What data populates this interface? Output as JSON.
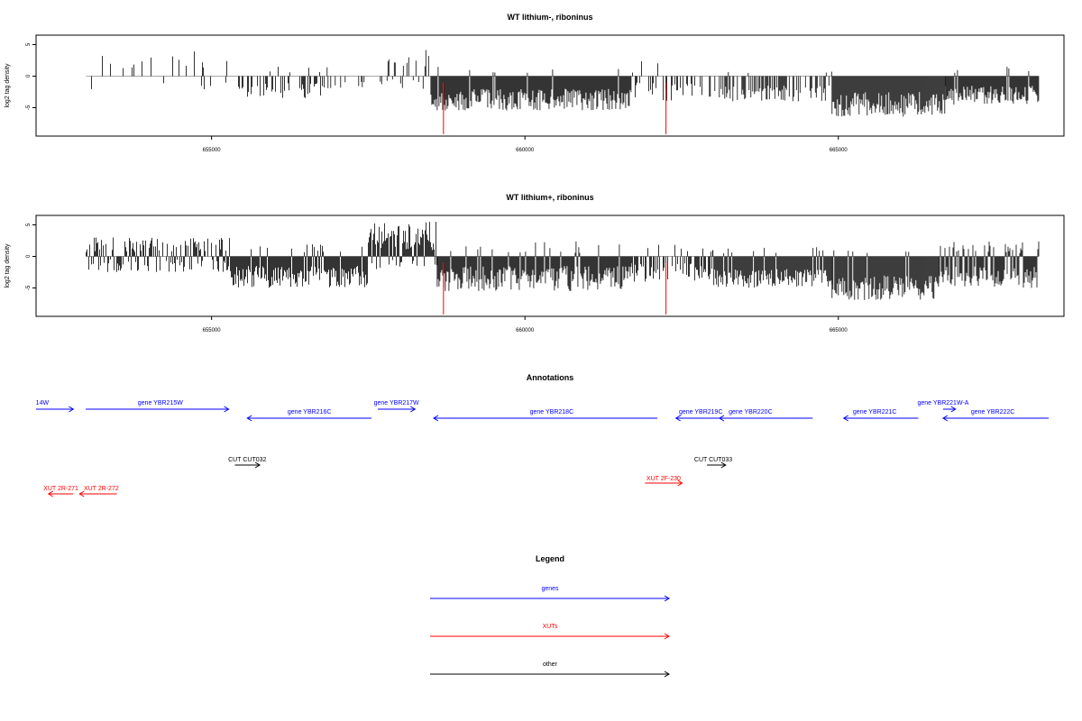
{
  "colors": {
    "gene": "#0000ff",
    "xut": "#ff0000",
    "other": "#000000",
    "marker": "#ff0000",
    "bars": "#000000",
    "baseline": "#a6a6a6"
  },
  "chart_data": [
    {
      "type": "bar",
      "title": "WT lithium-, riboninus",
      "ylabel": "log2 tag density",
      "xlim": [
        652200,
        668600
      ],
      "ylim": [
        -9.5,
        6.5
      ],
      "xticks": [
        655000,
        660000,
        665000
      ],
      "yticks": [
        5,
        0,
        -5
      ],
      "markers_x": [
        658700,
        662250
      ],
      "regions": [
        {
          "from": 653000,
          "to": 655400,
          "dens": 0.18,
          "pos": [
            1,
            4
          ],
          "neg": [
            1,
            2.5
          ],
          "pp": 0.65
        },
        {
          "from": 655400,
          "to": 656800,
          "dens": 0.5,
          "pos": [
            0.5,
            1.5
          ],
          "neg": [
            1,
            3.5
          ],
          "pp": 0.05
        },
        {
          "from": 656800,
          "to": 657700,
          "dens": 0.15,
          "pos": [
            0.5,
            1.5
          ],
          "neg": [
            0.5,
            2
          ],
          "pp": 0.1
        },
        {
          "from": 657700,
          "to": 658500,
          "dens": 0.32,
          "pos": [
            1,
            4.5
          ],
          "neg": [
            0.5,
            2
          ],
          "pp": 0.7
        },
        {
          "from": 658500,
          "to": 661700,
          "dens": 1.3,
          "pos": [
            0.5,
            1.5
          ],
          "neg": [
            2,
            5.5
          ],
          "pp": 0.02
        },
        {
          "from": 661700,
          "to": 662900,
          "dens": 0.35,
          "pos": [
            0.5,
            2.5
          ],
          "neg": [
            1,
            4
          ],
          "pp": 0.12
        },
        {
          "from": 662900,
          "to": 663900,
          "dens": 0.6,
          "pos": [
            0.5,
            1
          ],
          "neg": [
            1.5,
            4
          ],
          "pp": 0.03
        },
        {
          "from": 663900,
          "to": 664900,
          "dens": 0.6,
          "pos": [
            0.5,
            1
          ],
          "neg": [
            1.5,
            4
          ],
          "pp": 0.03
        },
        {
          "from": 664900,
          "to": 666700,
          "dens": 1.8,
          "pos": [
            0.5,
            1
          ],
          "neg": [
            2.5,
            6.5
          ],
          "pp": 0.01
        },
        {
          "from": 666700,
          "to": 668200,
          "dens": 1.2,
          "pos": [
            0.5,
            1.5
          ],
          "neg": [
            1.5,
            4.5
          ],
          "pp": 0.04
        }
      ]
    },
    {
      "type": "bar",
      "title": "WT lithium+, riboninus",
      "ylabel": "log2 tag density",
      "xlim": [
        652200,
        668600
      ],
      "ylim": [
        -9.5,
        6.5
      ],
      "xticks": [
        655000,
        660000,
        665000
      ],
      "yticks": [
        5,
        0,
        -5
      ],
      "markers_x": [
        658700,
        662250
      ],
      "regions": [
        {
          "from": 653000,
          "to": 655300,
          "dens": 0.8,
          "pos": [
            0.5,
            3
          ],
          "neg": [
            0.5,
            2.5
          ],
          "pp": 0.55
        },
        {
          "from": 655300,
          "to": 657500,
          "dens": 1.4,
          "pos": [
            0.5,
            2
          ],
          "neg": [
            1.5,
            5
          ],
          "pp": 0.12
        },
        {
          "from": 657500,
          "to": 658600,
          "dens": 1.5,
          "pos": [
            1,
            5.5
          ],
          "neg": [
            0.5,
            2
          ],
          "pp": 0.85
        },
        {
          "from": 658600,
          "to": 661700,
          "dens": 1.2,
          "pos": [
            0.5,
            2.5
          ],
          "neg": [
            1.5,
            5.5
          ],
          "pp": 0.1
        },
        {
          "from": 661700,
          "to": 663000,
          "dens": 0.6,
          "pos": [
            0.5,
            2
          ],
          "neg": [
            1,
            4
          ],
          "pp": 0.15
        },
        {
          "from": 663000,
          "to": 664900,
          "dens": 1.6,
          "pos": [
            0.5,
            1.5
          ],
          "neg": [
            2,
            5
          ],
          "pp": 0.05
        },
        {
          "from": 664900,
          "to": 666600,
          "dens": 2.2,
          "pos": [
            0.5,
            1.5
          ],
          "neg": [
            3,
            7
          ],
          "pp": 0.03
        },
        {
          "from": 666600,
          "to": 668200,
          "dens": 1.4,
          "pos": [
            0.5,
            2.5
          ],
          "neg": [
            1.5,
            5
          ],
          "pp": 0.2
        }
      ]
    }
  ],
  "annotations": {
    "title": "Annotations",
    "features": [
      {
        "label": "14W",
        "kind": "gene",
        "dir": "right",
        "x1": 652200,
        "x2": 652800,
        "row": 0,
        "label_x": 652300
      },
      {
        "label": "gene YBR215W",
        "kind": "gene",
        "dir": "right",
        "x1": 653000,
        "x2": 655300,
        "row": 0,
        "label_x": 654200
      },
      {
        "label": "gene YBR216C",
        "kind": "gene",
        "dir": "left",
        "x1": 655600,
        "x2": 657600,
        "row": 1,
        "label_x": 656600
      },
      {
        "label": "gene YBR217W",
        "kind": "gene",
        "dir": "right",
        "x1": 657700,
        "x2": 658300,
        "row": 0,
        "label_x": 658000
      },
      {
        "label": "gene YBR218C",
        "kind": "gene",
        "dir": "left",
        "x1": 658600,
        "x2": 662200,
        "row": 1,
        "label_x": 660500
      },
      {
        "label": "gene YBR219C",
        "kind": "gene",
        "dir": "left",
        "x1": 662500,
        "x2": 663300,
        "row": 1,
        "label_x": 662900
      },
      {
        "label": "gene YBR220C",
        "kind": "gene",
        "dir": "left",
        "x1": 663200,
        "x2": 664700,
        "row": 1,
        "label_x": 663700
      },
      {
        "label": "gene YBR221C",
        "kind": "gene",
        "dir": "left",
        "x1": 665200,
        "x2": 666400,
        "row": 1,
        "label_x": 665700
      },
      {
        "label": "gene YBR221W-A",
        "kind": "gene",
        "dir": "right",
        "x1": 666800,
        "x2": 667000,
        "row": 0,
        "label_x": 666800
      },
      {
        "label": "gene YBR222C",
        "kind": "gene",
        "dir": "left",
        "x1": 666800,
        "x2": 668500,
        "row": 1,
        "label_x": 667600
      },
      {
        "label": "CUT CUT032",
        "kind": "other",
        "dir": "right",
        "x1": 655400,
        "x2": 655800,
        "row": 2,
        "label_x": 655600
      },
      {
        "label": "CUT CUT033",
        "kind": "other",
        "dir": "right",
        "x1": 663000,
        "x2": 663300,
        "row": 2,
        "label_x": 663100
      },
      {
        "label": "XUT 2F-230",
        "kind": "xut",
        "dir": "right",
        "x1": 662000,
        "x2": 662600,
        "row": 3,
        "label_x": 662300
      },
      {
        "label": "XUT 2R-271",
        "kind": "xut",
        "dir": "left",
        "x1": 652400,
        "x2": 652800,
        "row": 4,
        "label_x": 652600
      },
      {
        "label": "XUT 2R-272",
        "kind": "xut",
        "dir": "left",
        "x1": 652900,
        "x2": 653500,
        "row": 4,
        "label_x": 653250
      }
    ]
  },
  "legend": {
    "title": "Legend",
    "items": [
      {
        "label": "genes",
        "kind": "gene"
      },
      {
        "label": "XUTs",
        "kind": "xut"
      },
      {
        "label": "other",
        "kind": "other"
      }
    ]
  }
}
